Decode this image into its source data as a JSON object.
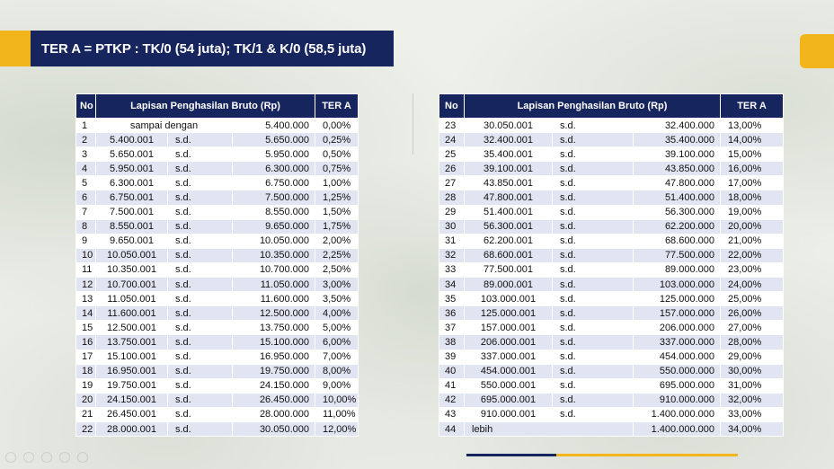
{
  "title": "TER A = PTKP : TK/0 (54 juta); TK/1 & K/0 (58,5 juta)",
  "colors": {
    "navy": "#17255e",
    "gold": "#f2b51b",
    "row_alt": "#e1e4f1"
  },
  "table_left": {
    "headers": {
      "no": "No",
      "lapisan": "Lapisan Penghasilan Bruto (Rp)",
      "ter": "TER A"
    },
    "first_row": {
      "no": "1",
      "label": "sampai dengan",
      "hi": "5.400.000",
      "rate": "0,00%"
    },
    "rows": [
      {
        "no": "2",
        "lo": "5.400.001",
        "sd": "s.d.",
        "hi": "5.650.000",
        "rate": "0,25%"
      },
      {
        "no": "3",
        "lo": "5.650.001",
        "sd": "s.d.",
        "hi": "5.950.000",
        "rate": "0,50%"
      },
      {
        "no": "4",
        "lo": "5.950.001",
        "sd": "s.d.",
        "hi": "6.300.000",
        "rate": "0,75%"
      },
      {
        "no": "5",
        "lo": "6.300.001",
        "sd": "s.d.",
        "hi": "6.750.000",
        "rate": "1,00%"
      },
      {
        "no": "6",
        "lo": "6.750.001",
        "sd": "s.d.",
        "hi": "7.500.000",
        "rate": "1,25%"
      },
      {
        "no": "7",
        "lo": "7.500.001",
        "sd": "s.d.",
        "hi": "8.550.000",
        "rate": "1,50%"
      },
      {
        "no": "8",
        "lo": "8.550.001",
        "sd": "s.d.",
        "hi": "9.650.000",
        "rate": "1,75%"
      },
      {
        "no": "9",
        "lo": "9.650.001",
        "sd": "s.d.",
        "hi": "10.050.000",
        "rate": "2,00%"
      },
      {
        "no": "10",
        "lo": "10.050.001",
        "sd": "s.d.",
        "hi": "10.350.000",
        "rate": "2,25%"
      },
      {
        "no": "11",
        "lo": "10.350.001",
        "sd": "s.d.",
        "hi": "10.700.000",
        "rate": "2,50%"
      },
      {
        "no": "12",
        "lo": "10.700.001",
        "sd": "s.d.",
        "hi": "11.050.000",
        "rate": "3,00%"
      },
      {
        "no": "13",
        "lo": "11.050.001",
        "sd": "s.d.",
        "hi": "11.600.000",
        "rate": "3,50%"
      },
      {
        "no": "14",
        "lo": "11.600.001",
        "sd": "s.d.",
        "hi": "12.500.000",
        "rate": "4,00%"
      },
      {
        "no": "15",
        "lo": "12.500.001",
        "sd": "s.d.",
        "hi": "13.750.000",
        "rate": "5,00%"
      },
      {
        "no": "16",
        "lo": "13.750.001",
        "sd": "s.d.",
        "hi": "15.100.000",
        "rate": "6,00%"
      },
      {
        "no": "17",
        "lo": "15.100.001",
        "sd": "s.d.",
        "hi": "16.950.000",
        "rate": "7,00%"
      },
      {
        "no": "18",
        "lo": "16.950.001",
        "sd": "s.d.",
        "hi": "19.750.000",
        "rate": "8,00%"
      },
      {
        "no": "19",
        "lo": "19.750.001",
        "sd": "s.d.",
        "hi": "24.150.000",
        "rate": "9,00%"
      },
      {
        "no": "20",
        "lo": "24.150.001",
        "sd": "s.d.",
        "hi": "26.450.000",
        "rate": "10,00%"
      },
      {
        "no": "21",
        "lo": "26.450.001",
        "sd": "s.d.",
        "hi": "28.000.000",
        "rate": "11,00%"
      },
      {
        "no": "22",
        "lo": "28.000.001",
        "sd": "s.d.",
        "hi": "30.050.000",
        "rate": "12,00%"
      }
    ]
  },
  "table_right": {
    "headers": {
      "no": "No",
      "lapisan": "Lapisan Penghasilan Bruto (Rp)",
      "ter": "TER A"
    },
    "rows": [
      {
        "no": "23",
        "lo": "30.050.001",
        "sd": "s.d.",
        "hi": "32.400.000",
        "rate": "13,00%"
      },
      {
        "no": "24",
        "lo": "32.400.001",
        "sd": "s.d.",
        "hi": "35.400.000",
        "rate": "14,00%"
      },
      {
        "no": "25",
        "lo": "35.400.001",
        "sd": "s.d.",
        "hi": "39.100.000",
        "rate": "15,00%"
      },
      {
        "no": "26",
        "lo": "39.100.001",
        "sd": "s.d.",
        "hi": "43.850.000",
        "rate": "16,00%"
      },
      {
        "no": "27",
        "lo": "43.850.001",
        "sd": "s.d.",
        "hi": "47.800.000",
        "rate": "17,00%"
      },
      {
        "no": "28",
        "lo": "47.800.001",
        "sd": "s.d.",
        "hi": "51.400.000",
        "rate": "18,00%"
      },
      {
        "no": "29",
        "lo": "51.400.001",
        "sd": "s.d.",
        "hi": "56.300.000",
        "rate": "19,00%"
      },
      {
        "no": "30",
        "lo": "56.300.001",
        "sd": "s.d.",
        "hi": "62.200.000",
        "rate": "20,00%"
      },
      {
        "no": "31",
        "lo": "62.200.001",
        "sd": "s.d.",
        "hi": "68.600.000",
        "rate": "21,00%"
      },
      {
        "no": "32",
        "lo": "68.600.001",
        "sd": "s.d.",
        "hi": "77.500.000",
        "rate": "22,00%"
      },
      {
        "no": "33",
        "lo": "77.500.001",
        "sd": "s.d.",
        "hi": "89.000.000",
        "rate": "23,00%"
      },
      {
        "no": "34",
        "lo": "89.000.001",
        "sd": "s.d.",
        "hi": "103.000.000",
        "rate": "24,00%"
      },
      {
        "no": "35",
        "lo": "103.000.001",
        "sd": "s.d.",
        "hi": "125.000.000",
        "rate": "25,00%"
      },
      {
        "no": "36",
        "lo": "125.000.001",
        "sd": "s.d.",
        "hi": "157.000.000",
        "rate": "26,00%"
      },
      {
        "no": "37",
        "lo": "157.000.001",
        "sd": "s.d.",
        "hi": "206.000.000",
        "rate": "27,00%"
      },
      {
        "no": "38",
        "lo": "206.000.001",
        "sd": "s.d.",
        "hi": "337.000.000",
        "rate": "28,00%"
      },
      {
        "no": "39",
        "lo": "337.000.001",
        "sd": "s.d.",
        "hi": "454.000.000",
        "rate": "29,00%"
      },
      {
        "no": "40",
        "lo": "454.000.001",
        "sd": "s.d.",
        "hi": "550.000.000",
        "rate": "30,00%"
      },
      {
        "no": "41",
        "lo": "550.000.001",
        "sd": "s.d.",
        "hi": "695.000.000",
        "rate": "31,00%"
      },
      {
        "no": "42",
        "lo": "695.000.001",
        "sd": "s.d.",
        "hi": "910.000.000",
        "rate": "32,00%"
      },
      {
        "no": "43",
        "lo": "910.000.001",
        "sd": "s.d.",
        "hi": "1.400.000.000",
        "rate": "33,00%"
      }
    ],
    "last_row": {
      "no": "44",
      "label": "lebih",
      "hi": "1.400.000.000",
      "rate": "34,00%"
    }
  }
}
